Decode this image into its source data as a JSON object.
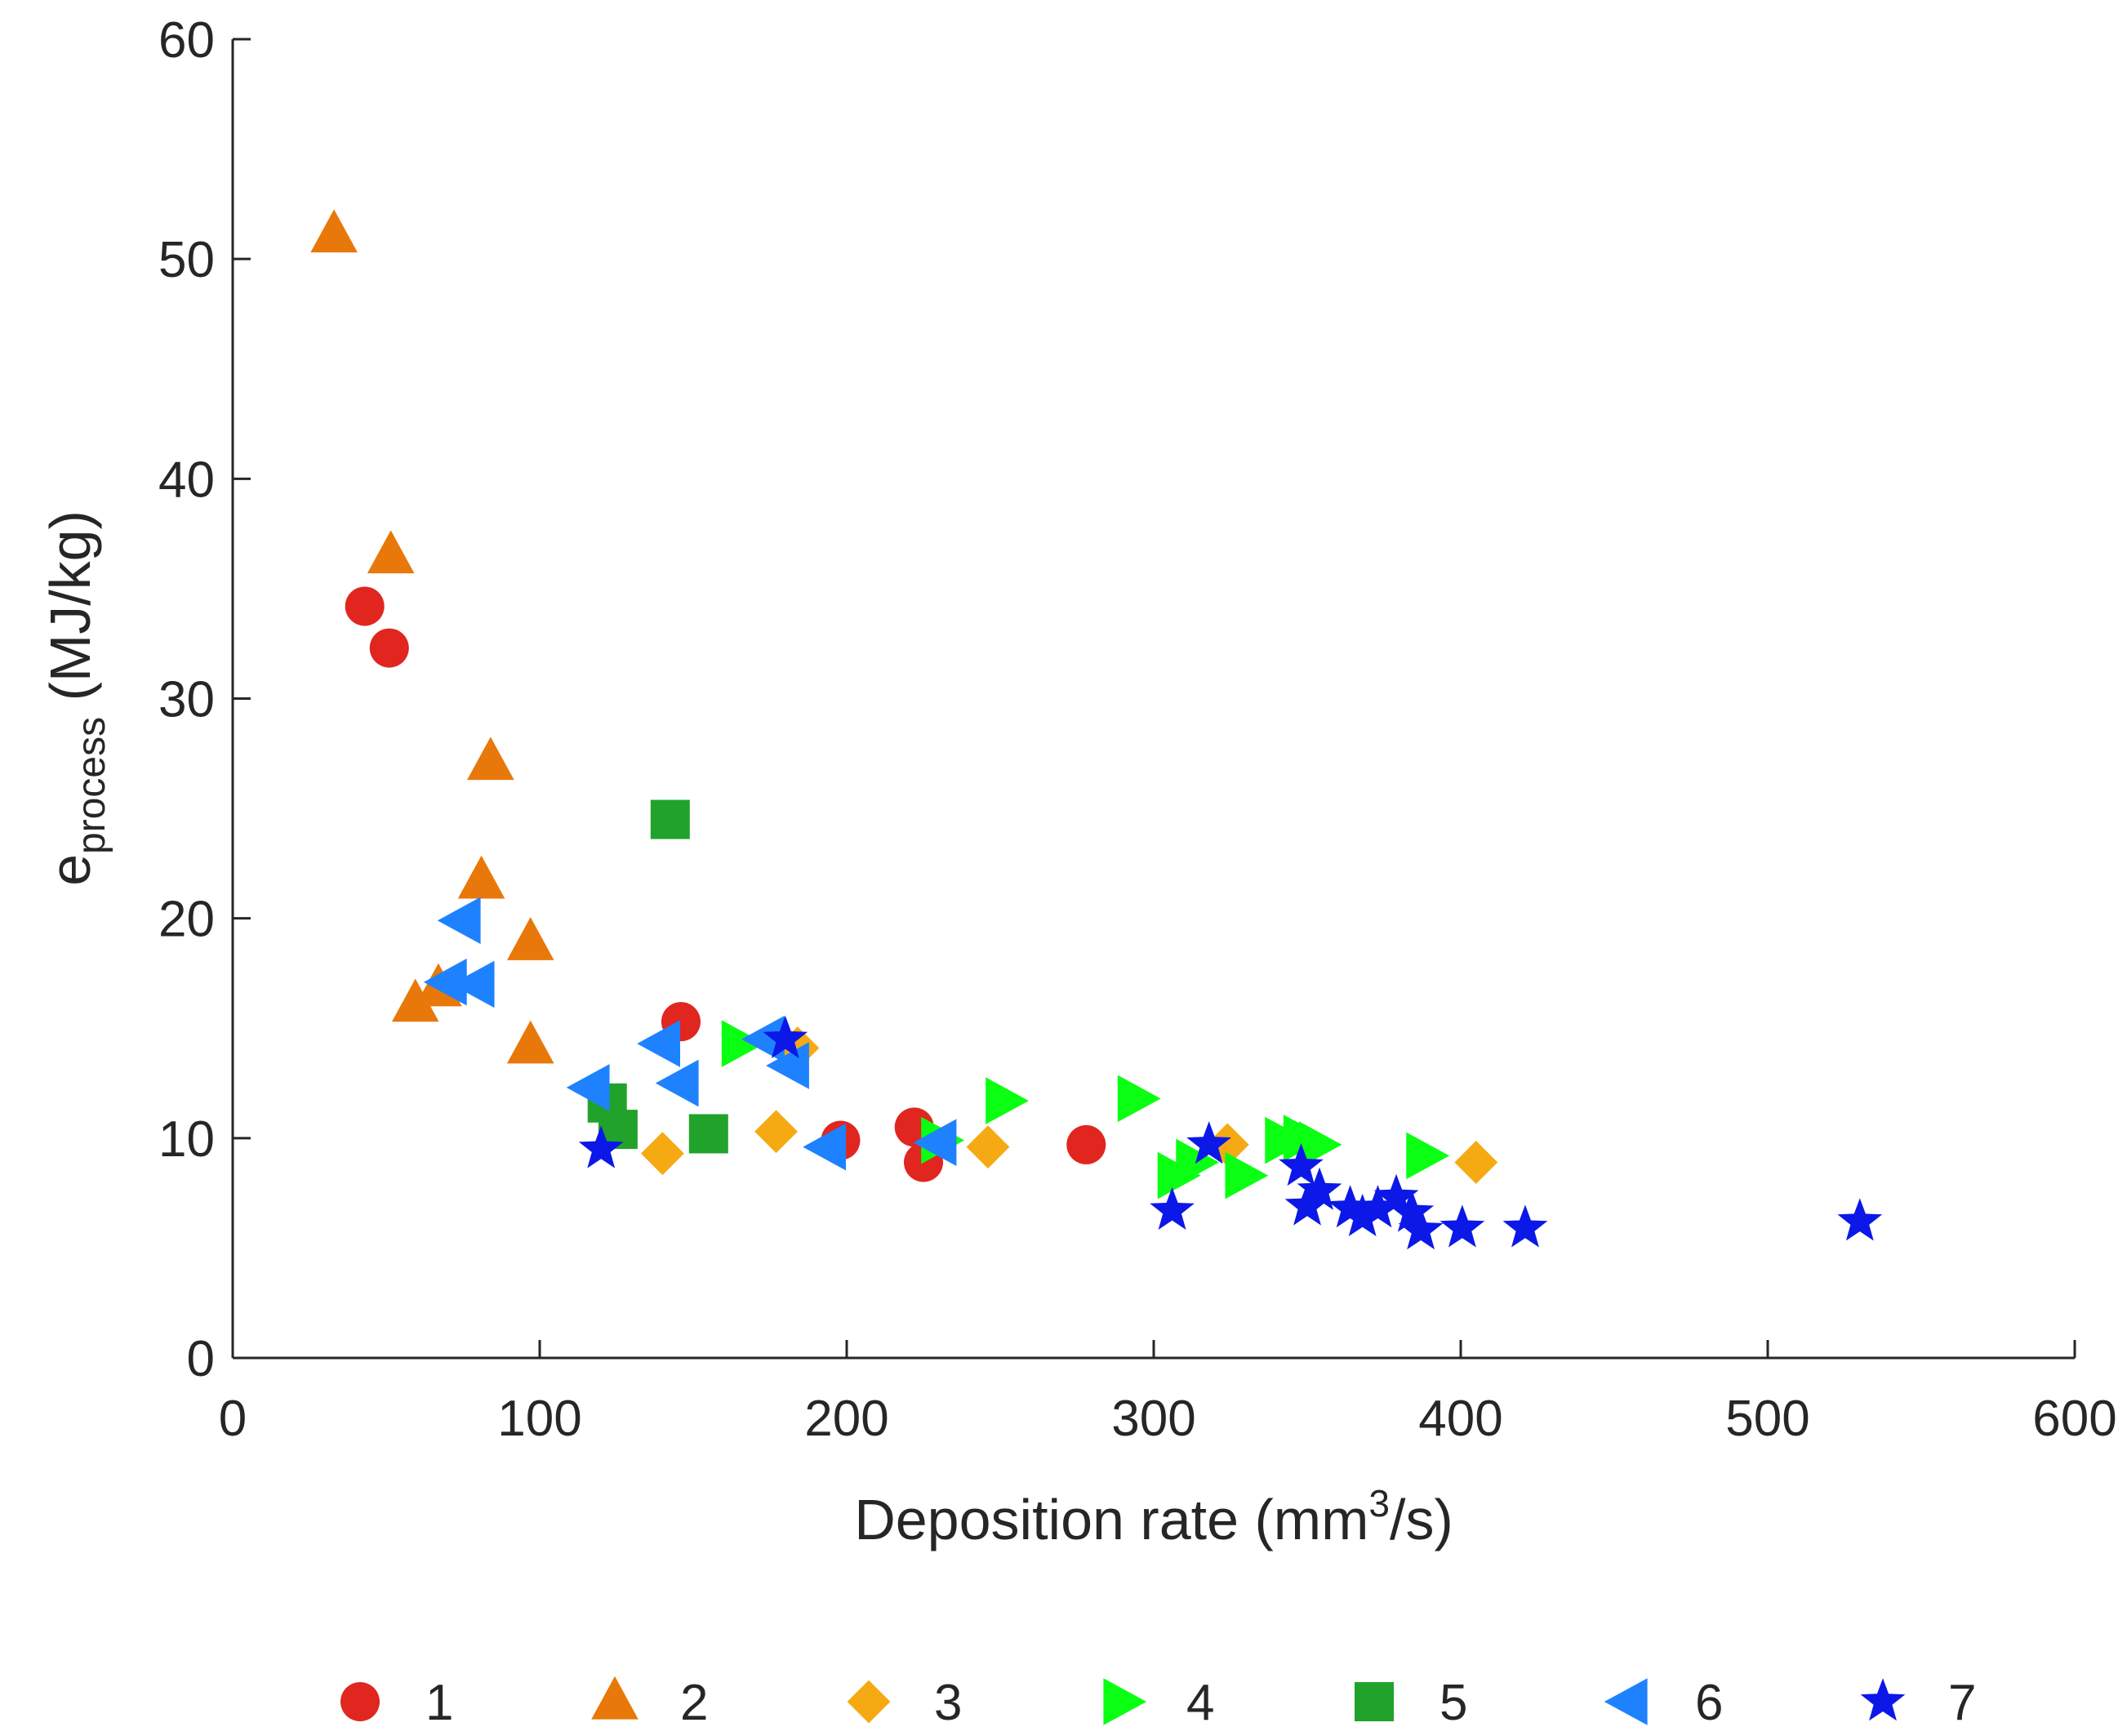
{
  "chart_data": {
    "type": "scatter",
    "xlabel": "Deposition rate (mm³/s)",
    "xlabel_parts": {
      "main": "Deposition rate (mm",
      "sup": "3",
      "end": "/s)"
    },
    "ylabel_parts": {
      "main": "e",
      "sub": "process",
      "end": " (MJ/kg)"
    },
    "xlim": [
      0,
      600
    ],
    "ylim": [
      0,
      60
    ],
    "xticks": [
      0,
      100,
      200,
      300,
      400,
      500,
      600
    ],
    "yticks": [
      0,
      10,
      20,
      30,
      40,
      50,
      60
    ],
    "grid": false,
    "legend_placement": "bottom",
    "series": [
      {
        "name": "1",
        "marker": "circle",
        "color": "#e0261f",
        "points": [
          [
            43,
            34.2
          ],
          [
            51,
            32.3
          ],
          [
            146,
            15.3
          ],
          [
            198,
            9.9
          ],
          [
            222,
            10.5
          ],
          [
            225,
            8.9
          ],
          [
            278,
            9.7
          ]
        ]
      },
      {
        "name": "2",
        "marker": "triangle-up",
        "color": "#e8780a",
        "points": [
          [
            33,
            51.1
          ],
          [
            51.5,
            36.5
          ],
          [
            84,
            27.1
          ],
          [
            81,
            21.7
          ],
          [
            97,
            18.9
          ],
          [
            97,
            14.2
          ],
          [
            59.5,
            16.1
          ],
          [
            67,
            16.8
          ]
        ]
      },
      {
        "name": "3",
        "marker": "diamond",
        "color": "#f5a913",
        "points": [
          [
            140,
            9.3
          ],
          [
            177,
            10.3
          ],
          [
            184,
            14.1
          ],
          [
            246,
            9.6
          ],
          [
            324,
            9.7
          ],
          [
            405,
            8.9
          ]
        ]
      },
      {
        "name": "4",
        "marker": "triangle-right",
        "color": "#0bff12",
        "points": [
          [
            165,
            14.3
          ],
          [
            251,
            11.7
          ],
          [
            294,
            11.8
          ],
          [
            230,
            9.9
          ],
          [
            307,
            8.3
          ],
          [
            313,
            8.9
          ],
          [
            329,
            8.3
          ],
          [
            342,
            9.9
          ],
          [
            348,
            10.0
          ],
          [
            353,
            9.7
          ],
          [
            388,
            9.2
          ]
        ]
      },
      {
        "name": "5",
        "marker": "square",
        "color": "#21a32b",
        "points": [
          [
            142.5,
            24.5
          ],
          [
            122,
            11.6
          ],
          [
            125.5,
            10.4
          ],
          [
            155,
            10.2
          ]
        ]
      },
      {
        "name": "6",
        "marker": "triangle-left",
        "color": "#1e82ff",
        "points": [
          [
            75,
            19.9
          ],
          [
            70.5,
            17.1
          ],
          [
            79.5,
            17.0
          ],
          [
            117,
            12.3
          ],
          [
            140,
            14.3
          ],
          [
            146,
            12.5
          ],
          [
            174,
            14.5
          ],
          [
            182,
            13.3
          ],
          [
            194,
            9.6
          ],
          [
            230,
            9.8
          ]
        ]
      },
      {
        "name": "7",
        "marker": "star",
        "color": "#0c18e8",
        "points": [
          [
            120,
            9.5
          ],
          [
            180,
            14.5
          ],
          [
            318,
            9.7
          ],
          [
            306,
            6.7
          ],
          [
            348,
            8.7
          ],
          [
            350,
            6.9
          ],
          [
            354,
            7.6
          ],
          [
            364,
            6.8
          ],
          [
            368,
            6.4
          ],
          [
            373,
            6.8
          ],
          [
            379,
            7.3
          ],
          [
            384,
            6.6
          ],
          [
            387,
            5.8
          ],
          [
            400.5,
            5.9
          ],
          [
            421,
            5.9
          ],
          [
            530,
            6.2
          ]
        ]
      }
    ]
  }
}
